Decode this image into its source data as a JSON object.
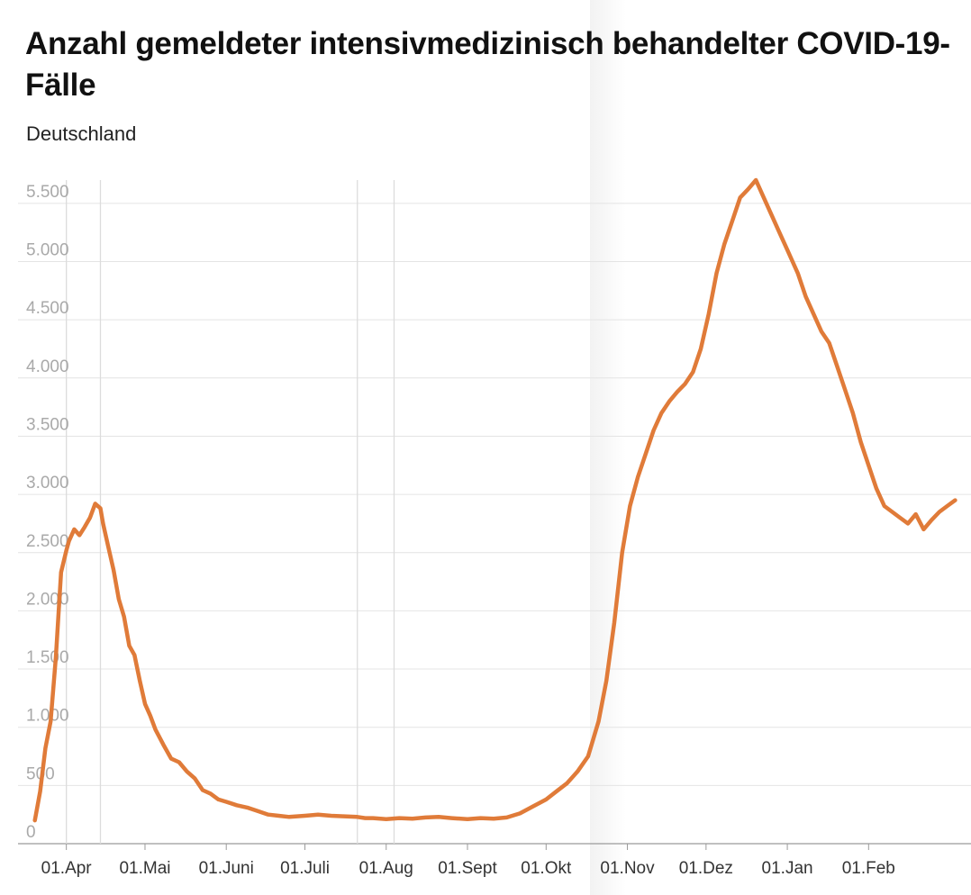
{
  "chart_data": {
    "type": "line",
    "title": "Anzahl gemeldeter intensivmedizinisch behandelter COVID-19-Fälle",
    "subtitle": "Deutschland",
    "xlabel": "",
    "ylabel": "",
    "ylim": [
      0,
      5700
    ],
    "yticks": [
      0,
      500,
      1000,
      1500,
      2000,
      2500,
      3000,
      3500,
      4000,
      4500,
      5000,
      5500
    ],
    "ytick_labels": [
      "0",
      "500",
      "1.000",
      "1.500",
      "2.000",
      "2.500",
      "3.000",
      "3.500",
      "4.000",
      "4.500",
      "5.000",
      "5.500"
    ],
    "xticks": [
      "2020-04-01",
      "2020-05-01",
      "2020-06-01",
      "2020-07-01",
      "2020-08-01",
      "2020-09-01",
      "2020-10-01",
      "2020-11-01",
      "2020-12-01",
      "2021-01-01",
      "2021-02-01"
    ],
    "xtick_labels": [
      "01.Apr",
      "01.Mai",
      "01.Juni",
      "01.Juli",
      "01.Aug",
      "01.Sept",
      "01.Okt",
      "01.Nov",
      "01.Dez",
      "01.Jan",
      "01.Feb"
    ],
    "xlim": [
      "2020-03-17",
      "2021-03-10"
    ],
    "vertical_gridlines": [
      "2020-04-01",
      "2020-04-14",
      "2020-07-21",
      "2020-08-04"
    ],
    "horizontal_grid": true,
    "line_color": "#e07b39",
    "series": [
      {
        "name": "",
        "x": [
          "2020-03-20",
          "2020-03-22",
          "2020-03-24",
          "2020-03-26",
          "2020-03-28",
          "2020-03-30",
          "2020-04-01",
          "2020-04-02",
          "2020-04-04",
          "2020-04-06",
          "2020-04-08",
          "2020-04-10",
          "2020-04-12",
          "2020-04-14",
          "2020-04-15",
          "2020-04-17",
          "2020-04-19",
          "2020-04-21",
          "2020-04-23",
          "2020-04-25",
          "2020-04-27",
          "2020-04-29",
          "2020-05-01",
          "2020-05-03",
          "2020-05-05",
          "2020-05-08",
          "2020-05-11",
          "2020-05-14",
          "2020-05-17",
          "2020-05-20",
          "2020-05-23",
          "2020-05-26",
          "2020-05-29",
          "2020-06-01",
          "2020-06-05",
          "2020-06-09",
          "2020-06-13",
          "2020-06-17",
          "2020-06-21",
          "2020-06-25",
          "2020-07-01",
          "2020-07-06",
          "2020-07-11",
          "2020-07-16",
          "2020-07-21",
          "2020-07-24",
          "2020-07-27",
          "2020-08-01",
          "2020-08-06",
          "2020-08-11",
          "2020-08-16",
          "2020-08-21",
          "2020-08-26",
          "2020-09-01",
          "2020-09-06",
          "2020-09-11",
          "2020-09-16",
          "2020-09-21",
          "2020-09-26",
          "2020-10-01",
          "2020-10-05",
          "2020-10-09",
          "2020-10-13",
          "2020-10-17",
          "2020-10-21",
          "2020-10-24",
          "2020-10-27",
          "2020-10-30",
          "2020-11-02",
          "2020-11-05",
          "2020-11-08",
          "2020-11-11",
          "2020-11-14",
          "2020-11-17",
          "2020-11-20",
          "2020-11-23",
          "2020-11-26",
          "2020-11-29",
          "2020-12-02",
          "2020-12-05",
          "2020-12-08",
          "2020-12-11",
          "2020-12-14",
          "2020-12-17",
          "2020-12-20",
          "2020-12-23",
          "2020-12-26",
          "2020-12-29",
          "2021-01-01",
          "2021-01-03",
          "2021-01-05",
          "2021-01-08",
          "2021-01-11",
          "2021-01-14",
          "2021-01-17",
          "2021-01-20",
          "2021-01-23",
          "2021-01-26",
          "2021-01-29",
          "2021-02-01",
          "2021-02-04",
          "2021-02-07",
          "2021-02-10",
          "2021-02-13",
          "2021-02-16",
          "2021-02-19",
          "2021-02-22",
          "2021-02-25",
          "2021-02-28",
          "2021-03-03",
          "2021-03-06"
        ],
        "y": [
          200,
          450,
          820,
          1050,
          1600,
          2330,
          2520,
          2600,
          2700,
          2650,
          2720,
          2800,
          2920,
          2880,
          2750,
          2550,
          2350,
          2100,
          1950,
          1700,
          1620,
          1400,
          1200,
          1100,
          980,
          850,
          730,
          700,
          620,
          560,
          460,
          430,
          380,
          360,
          330,
          310,
          280,
          250,
          240,
          230,
          240,
          250,
          240,
          235,
          230,
          220,
          220,
          210,
          220,
          215,
          225,
          230,
          220,
          210,
          220,
          215,
          225,
          260,
          320,
          380,
          450,
          520,
          620,
          750,
          1050,
          1400,
          1900,
          2500,
          2900,
          3150,
          3350,
          3550,
          3700,
          3800,
          3880,
          3950,
          4050,
          4250,
          4550,
          4900,
          5150,
          5350,
          5550,
          5620,
          5700,
          5550,
          5400,
          5250,
          5100,
          5000,
          4900,
          4700,
          4550,
          4400,
          4300,
          4100,
          3900,
          3700,
          3450,
          3250,
          3050,
          2900,
          2850,
          2800,
          2750,
          2830,
          2700,
          2780,
          2850,
          2900,
          2950
        ]
      }
    ]
  }
}
